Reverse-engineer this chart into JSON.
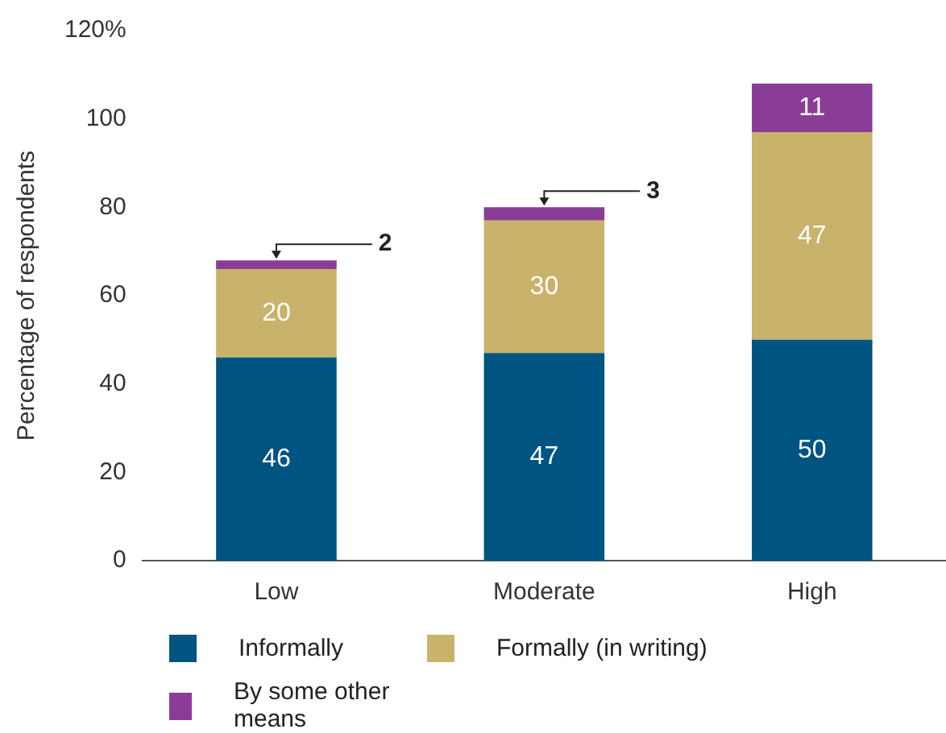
{
  "chart_data": {
    "type": "bar",
    "stacked": true,
    "categories": [
      "Low",
      "Moderate",
      "High"
    ],
    "ylabel": "Percentage of respondents",
    "series": [
      {
        "name": "Informally",
        "color": "#005482",
        "values": [
          46,
          47,
          50
        ]
      },
      {
        "name": "Formally (in writing)",
        "color": "#c9b26a",
        "values": [
          20,
          30,
          47
        ]
      },
      {
        "name": "By some other means",
        "color": "#8a3d97",
        "values": [
          2,
          3,
          11
        ]
      }
    ],
    "ylim": [
      0,
      120
    ],
    "yticks": [
      0,
      20,
      40,
      60,
      80,
      100,
      {
        "value": 120,
        "label": "120%"
      }
    ],
    "grid": false,
    "legend": "bottom",
    "data_labels": true
  }
}
